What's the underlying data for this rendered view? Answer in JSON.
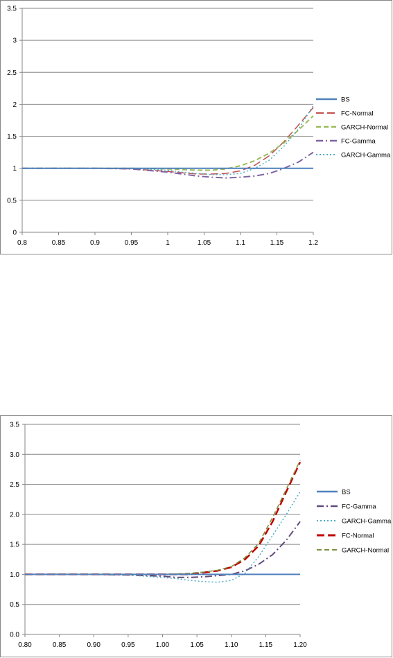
{
  "chart_data": [
    {
      "type": "line",
      "title": "",
      "xlabel": "",
      "ylabel": "",
      "xlim": [
        0.8,
        1.2
      ],
      "ylim": [
        0,
        3.5
      ],
      "x_ticks": [
        "0.8",
        "0.85",
        "0.9",
        "0.95",
        "1",
        "1.05",
        "1.1",
        "1.15",
        "1.2"
      ],
      "y_ticks": [
        "0",
        "0.5",
        "1",
        "1.5",
        "2",
        "2.5",
        "3",
        "3.5"
      ],
      "grid": "horizontal",
      "legend": "right",
      "x": [
        0.8,
        0.85,
        0.9,
        0.95,
        1.0,
        1.02,
        1.04,
        1.06,
        1.08,
        1.1,
        1.12,
        1.14,
        1.16,
        1.18,
        1.2
      ],
      "series": [
        {
          "name": "BS",
          "color": "#4f81bd",
          "dash": "solid",
          "width": 2,
          "values": [
            1,
            1,
            1,
            1,
            1,
            1,
            1,
            1,
            1,
            1,
            1,
            1,
            1,
            1,
            1
          ]
        },
        {
          "name": "FC-Normal",
          "color": "#c0504d",
          "dash": "long-dash",
          "width": 1.5,
          "values": [
            1,
            1,
            1,
            0.99,
            0.95,
            0.93,
            0.91,
            0.91,
            0.92,
            0.96,
            1.05,
            1.2,
            1.42,
            1.68,
            1.95
          ]
        },
        {
          "name": "GARCH-Normal",
          "color": "#9bbb59",
          "dash": "dash",
          "width": 2,
          "values": [
            1,
            1,
            1,
            1,
            0.99,
            0.98,
            0.97,
            0.97,
            0.99,
            1.04,
            1.12,
            1.24,
            1.4,
            1.6,
            1.82
          ]
        },
        {
          "name": "FC-Gamma",
          "color": "#8064a2",
          "dash": "dash-dot",
          "width": 2,
          "values": [
            1,
            1,
            1,
            0.99,
            0.94,
            0.91,
            0.88,
            0.86,
            0.85,
            0.86,
            0.88,
            0.92,
            1.0,
            1.1,
            1.25
          ]
        },
        {
          "name": "GARCH-Gamma",
          "color": "#4bacc6",
          "dash": "dot",
          "width": 1.5,
          "values": [
            1,
            1,
            1,
            1,
            0.97,
            0.94,
            0.92,
            0.9,
            0.9,
            0.92,
            1.0,
            1.13,
            1.35,
            1.62,
            1.98
          ]
        }
      ]
    },
    {
      "type": "line",
      "title": "",
      "xlabel": "",
      "ylabel": "",
      "xlim": [
        0.8,
        1.2
      ],
      "ylim": [
        0,
        3.5
      ],
      "x_ticks": [
        "0.80",
        "0.85",
        "0.90",
        "0.95",
        "1.00",
        "1.05",
        "1.10",
        "1.15",
        "1.20"
      ],
      "y_ticks": [
        "0.0",
        "0.5",
        "1.0",
        "1.5",
        "2.0",
        "2.5",
        "3.0",
        "3.5"
      ],
      "grid": "horizontal",
      "legend": "right",
      "x": [
        0.8,
        0.85,
        0.9,
        0.95,
        1.0,
        1.02,
        1.04,
        1.06,
        1.08,
        1.1,
        1.12,
        1.14,
        1.16,
        1.18,
        1.2
      ],
      "series": [
        {
          "name": "BS",
          "color": "#4f81bd",
          "dash": "solid",
          "width": 2,
          "values": [
            1,
            1,
            1,
            1,
            1,
            1,
            1,
            1,
            1,
            1,
            1,
            1,
            1,
            1,
            1
          ]
        },
        {
          "name": "FC-Gamma",
          "color": "#604a7b",
          "dash": "dash-dot",
          "width": 2,
          "values": [
            1,
            1,
            1,
            0.99,
            0.97,
            0.95,
            0.95,
            0.96,
            0.98,
            1.0,
            1.06,
            1.17,
            1.33,
            1.57,
            1.88
          ]
        },
        {
          "name": "GARCH-Gamma",
          "color": "#4bacc6",
          "dash": "dot",
          "width": 1.5,
          "values": [
            1,
            1,
            1,
            0.99,
            0.95,
            0.93,
            0.9,
            0.88,
            0.87,
            0.9,
            1.02,
            1.3,
            1.65,
            2.0,
            2.38
          ]
        },
        {
          "name": "FC-Normal",
          "color": "#c00000",
          "dash": "long-dash",
          "width": 2.5,
          "values": [
            1,
            1,
            1,
            1,
            1,
            1,
            1,
            1.03,
            1.06,
            1.12,
            1.25,
            1.48,
            1.88,
            2.38,
            2.87
          ]
        },
        {
          "name": "GARCH-Normal",
          "color": "#77933c",
          "dash": "dash",
          "width": 1.5,
          "values": [
            1,
            1,
            1,
            1,
            1,
            1.01,
            1.02,
            1.04,
            1.07,
            1.13,
            1.28,
            1.52,
            1.95,
            2.42,
            2.9
          ]
        }
      ]
    }
  ]
}
